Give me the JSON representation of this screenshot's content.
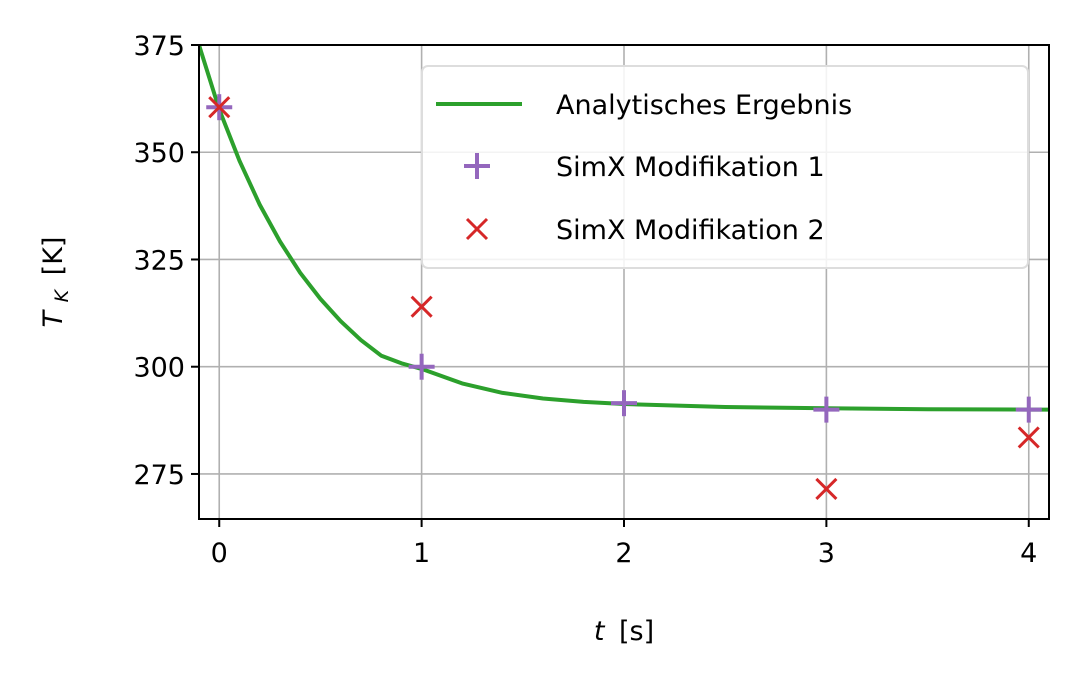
{
  "chart_data": {
    "type": "line",
    "xlim": [
      -0.1,
      4.1
    ],
    "ylim": [
      264.5,
      375
    ],
    "x_ticks": [
      0,
      1,
      2,
      3,
      4
    ],
    "y_ticks": [
      275,
      300,
      325,
      350,
      375
    ],
    "x_tick_labels": [
      "0",
      "1",
      "2",
      "3",
      "4"
    ],
    "y_tick_labels": [
      "275",
      "300",
      "325",
      "350",
      "375"
    ],
    "xlabel": {
      "var": "t",
      "unit": "[s]"
    },
    "ylabel": {
      "var": "T",
      "sub": "K",
      "unit": "[K]"
    },
    "grid": true,
    "legend_position": "upper-right",
    "series": [
      {
        "name": "Analytisches Ergebnis",
        "kind": "line",
        "color": "#2ca02c",
        "x": [
          -0.1,
          0,
          0.1,
          0.2,
          0.3,
          0.4,
          0.5,
          0.6,
          0.7,
          0.8,
          0.9,
          1.0,
          1.2,
          1.4,
          1.6,
          1.8,
          2.0,
          2.5,
          3.0,
          3.5,
          4.0,
          4.1
        ],
        "y": [
          375.0,
          360.0,
          348.0,
          337.8,
          329.2,
          321.9,
          315.8,
          310.6,
          306.2,
          302.6,
          300.8,
          299.5,
          296.1,
          293.9,
          292.6,
          291.8,
          291.3,
          290.6,
          290.3,
          290.1,
          290.0,
          290.0
        ]
      },
      {
        "name": "SimX Modifikation 1",
        "kind": "plus",
        "color": "#9467bd",
        "x": [
          0,
          1,
          2,
          3,
          4
        ],
        "y": [
          360.5,
          300.0,
          291.5,
          290.0,
          290.0
        ]
      },
      {
        "name": "SimX Modifikation 2",
        "kind": "x",
        "color": "#d62728",
        "x": [
          0,
          1,
          3,
          4
        ],
        "y": [
          360.5,
          314.0,
          271.5,
          283.5
        ]
      }
    ]
  }
}
